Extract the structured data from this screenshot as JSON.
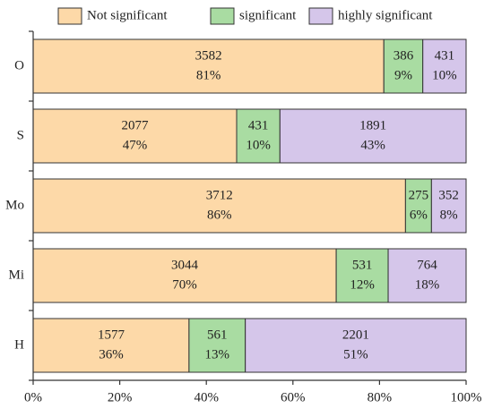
{
  "chart_data": {
    "type": "stacked-bar-horizontal",
    "categories": [
      "O",
      "S",
      "Mo",
      "Mi",
      "H"
    ],
    "series": [
      {
        "name": "Not significant",
        "color": "#fdd9a8",
        "values": [
          81,
          47,
          86,
          70,
          36
        ],
        "value_labels": [
          "81%",
          "47%",
          "86%",
          "70%",
          "36%"
        ],
        "counts": [
          3582,
          2077,
          3712,
          3044,
          1577
        ]
      },
      {
        "name": "significant",
        "color": "#a9dca2",
        "values": [
          9,
          10,
          6,
          12,
          13
        ],
        "value_labels": [
          "9%",
          "10%",
          "6%",
          "12%",
          "13%"
        ],
        "counts": [
          386,
          431,
          275,
          531,
          561
        ]
      },
      {
        "name": "highly significant",
        "color": "#d5c6ea",
        "values": [
          10,
          43,
          8,
          18,
          51
        ],
        "value_labels": [
          "10%",
          "43%",
          "8%",
          "18%",
          "51%"
        ],
        "counts": [
          431,
          1891,
          352,
          764,
          2201
        ]
      }
    ],
    "xlim": [
      0,
      100
    ],
    "xticks": [
      {
        "value": 0,
        "label": "0%"
      },
      {
        "value": 20,
        "label": "20%"
      },
      {
        "value": 40,
        "label": "40%"
      },
      {
        "value": 60,
        "label": "60%"
      },
      {
        "value": 80,
        "label": "80%"
      },
      {
        "value": 100,
        "label": "100%"
      }
    ],
    "legend": "top"
  }
}
